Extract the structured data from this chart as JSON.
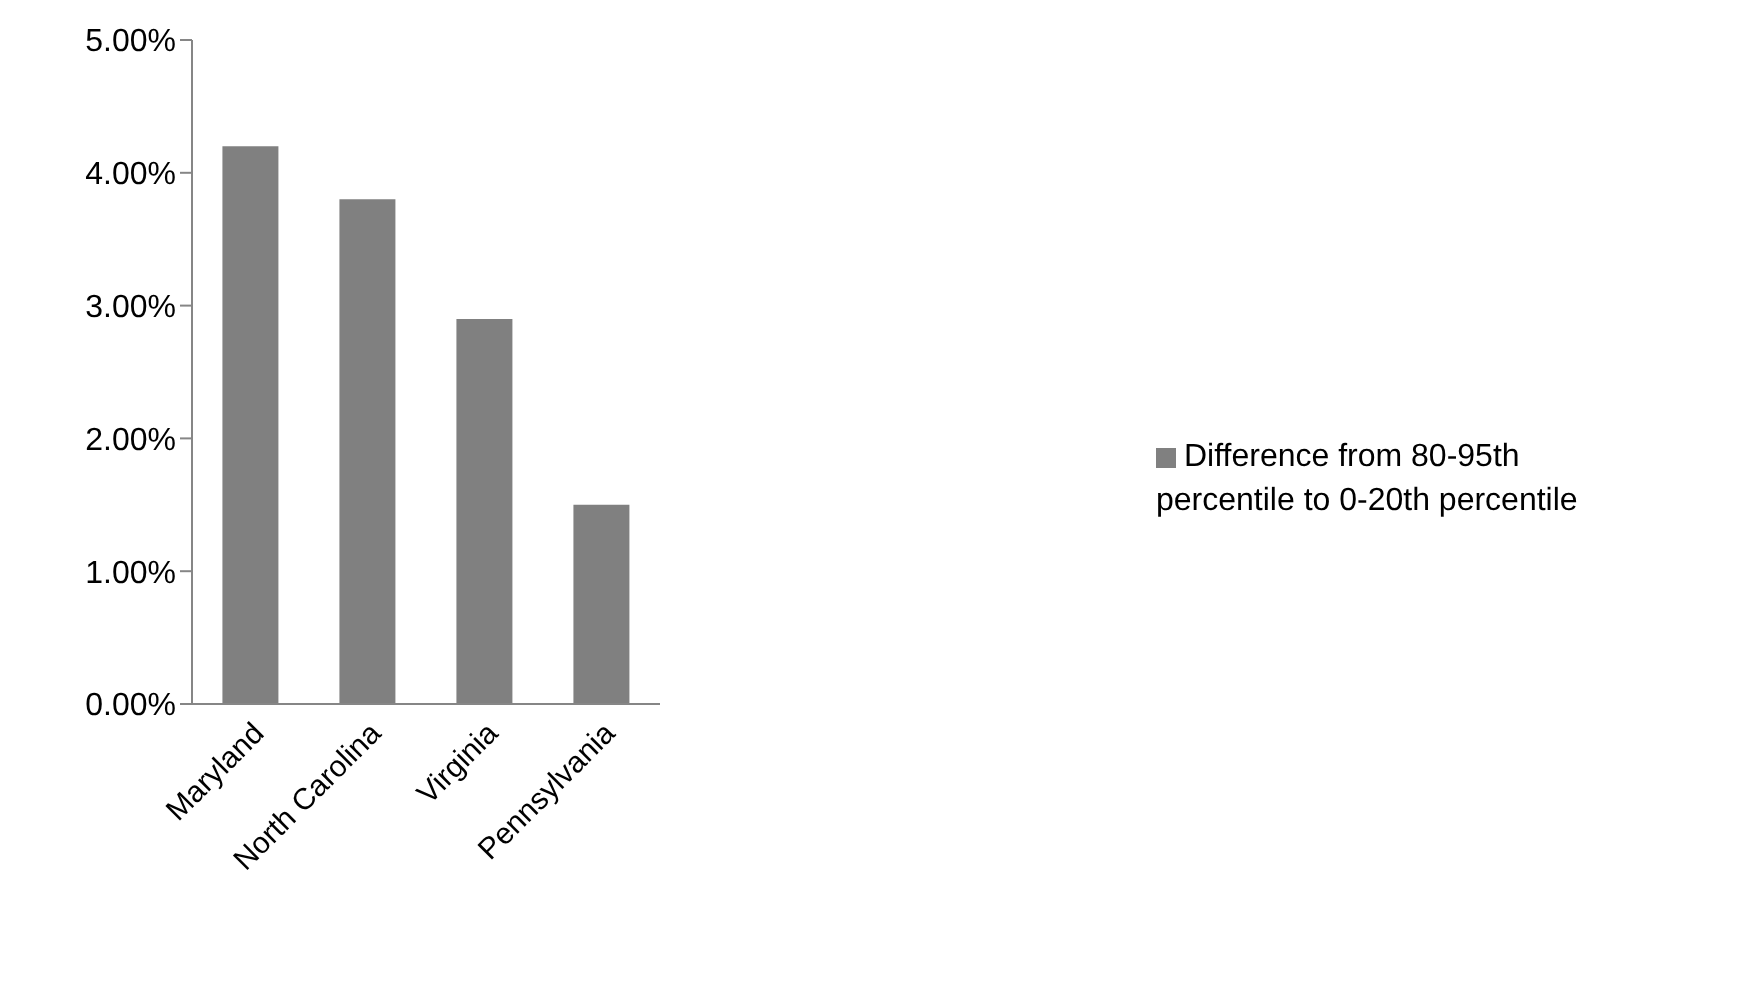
{
  "chart_data": {
    "type": "bar",
    "categories": [
      "Maryland",
      "North Carolina",
      "Virginia",
      "Pennsylvania"
    ],
    "series": [
      {
        "name": "Difference from 80-95th percentile to 0-20th percentile",
        "color": "#808080",
        "values": [
          4.2,
          3.8,
          2.9,
          1.5
        ]
      }
    ],
    "ylim": [
      0,
      5
    ],
    "yticks": [
      {
        "value": 0,
        "label": "0.00%"
      },
      {
        "value": 1,
        "label": "1.00%"
      },
      {
        "value": 2,
        "label": "2.00%"
      },
      {
        "value": 3,
        "label": "3.00%"
      },
      {
        "value": 4,
        "label": "4.00%"
      },
      {
        "value": 5,
        "label": "5.00%"
      }
    ],
    "grid": false,
    "legend": "right"
  }
}
